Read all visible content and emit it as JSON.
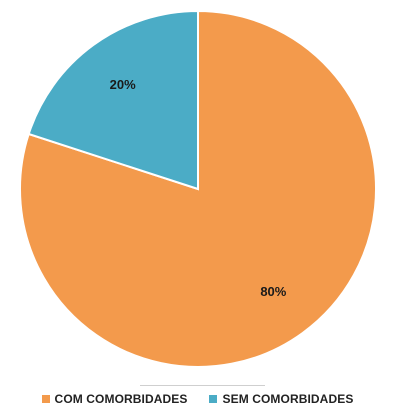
{
  "chart_data": {
    "type": "pie",
    "title": "",
    "categories": [
      "COM COMORBIDADES",
      "SEM COMORBIDADES"
    ],
    "values": [
      80,
      20
    ],
    "data_labels": [
      "80%",
      "20%"
    ],
    "colors": [
      "#F39A4C",
      "#4BACC6"
    ],
    "legend_position": "bottom"
  },
  "legend": {
    "items": [
      {
        "label": "COM COMORBIDADES",
        "color": "#F39A4C"
      },
      {
        "label": "SEM COMORBIDADES",
        "color": "#4BACC6"
      }
    ]
  }
}
